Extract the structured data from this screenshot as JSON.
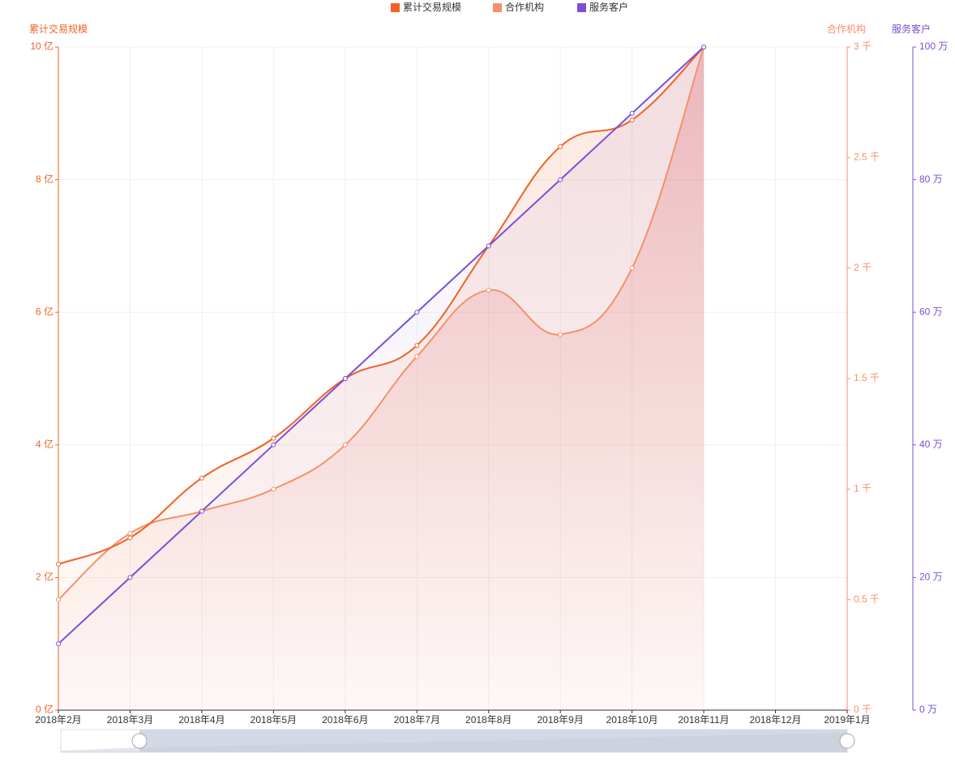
{
  "chart_data": {
    "type": "line",
    "categories": [
      "2018年2月",
      "2018年3月",
      "2018年4月",
      "2018年5月",
      "2018年6月",
      "2018年7月",
      "2018年8月",
      "2018年9月",
      "2018年10月",
      "2018年11月",
      "2018年12月",
      "2019年1月"
    ],
    "series": [
      {
        "name": "累计交易规模",
        "color": "#ee6327",
        "axis": "y",
        "values": [
          2.2,
          2.6,
          3.5,
          4.1,
          5.0,
          5.5,
          7.0,
          8.5,
          8.9,
          10,
          null,
          null
        ]
      },
      {
        "name": "合作机构",
        "color": "#f4916a",
        "axis": "y2",
        "values": [
          0.5,
          0.8,
          0.9,
          1.0,
          1.2,
          1.6,
          1.9,
          1.7,
          2.0,
          3.0,
          null,
          null
        ]
      },
      {
        "name": "服务客户",
        "color": "#7b4fd6",
        "axis": "y3",
        "values": [
          10,
          20,
          30,
          40,
          50,
          60,
          70,
          80,
          90,
          100,
          null,
          null
        ]
      }
    ],
    "y_axis_label": "累计交易规模",
    "y2_axis_label": "合作机构",
    "y3_axis_label": "服务客户",
    "ylim": [
      0,
      10
    ],
    "yticks": [
      {
        "value": 0,
        "label": "0 亿"
      },
      {
        "value": 2,
        "label": "2 亿"
      },
      {
        "value": 4,
        "label": "4 亿"
      },
      {
        "value": 6,
        "label": "6 亿"
      },
      {
        "value": 8,
        "label": "8 亿"
      },
      {
        "value": 10,
        "label": "10 亿"
      }
    ],
    "y2lim": [
      0,
      3
    ],
    "y2ticks": [
      {
        "value": 0,
        "label": "0 千"
      },
      {
        "value": 0.5,
        "label": "0.5 千"
      },
      {
        "value": 1,
        "label": "1 千"
      },
      {
        "value": 1.5,
        "label": "1.5 千"
      },
      {
        "value": 2,
        "label": "2 千"
      },
      {
        "value": 2.5,
        "label": "2.5 千"
      },
      {
        "value": 3,
        "label": "3 千"
      }
    ],
    "y3lim": [
      0,
      100
    ],
    "y3ticks": [
      {
        "value": 0,
        "label": "0 万"
      },
      {
        "value": 20,
        "label": "20 万"
      },
      {
        "value": 40,
        "label": "40 万"
      },
      {
        "value": 60,
        "label": "60 万"
      },
      {
        "value": 80,
        "label": "80 万"
      },
      {
        "value": 100,
        "label": "100 万"
      }
    ],
    "grid": true,
    "legend": "top"
  }
}
